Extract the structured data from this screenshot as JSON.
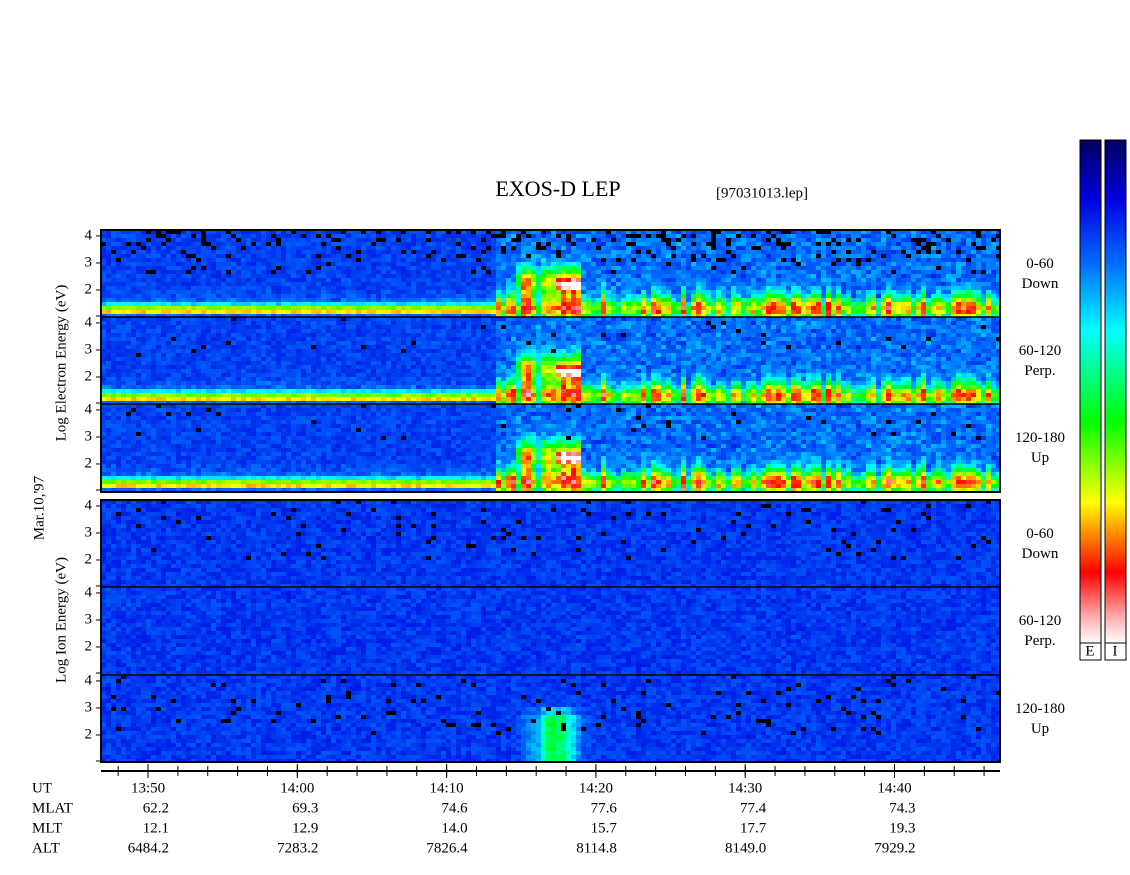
{
  "title": "EXOS-D LEP",
  "file": "[97031013.lep]",
  "date": "Mar.10,'97",
  "electron_axis_label": "Log Electron Energy (eV)",
  "ion_axis_label": "Log Ion Energy (eV)",
  "energy_ylim": [
    1,
    4.22
  ],
  "energy_ticks": [
    4,
    3,
    2
  ],
  "time_xlim": [
    "13:46:51",
    "14:47:04"
  ],
  "panels": [
    {
      "species": "electron",
      "pitch": "0-60",
      "direction": "Down"
    },
    {
      "species": "electron",
      "pitch": "60-120",
      "direction": "Perp."
    },
    {
      "species": "electron",
      "pitch": "120-180",
      "direction": "Up"
    },
    {
      "species": "ion",
      "pitch": "0-60",
      "direction": "Down"
    },
    {
      "species": "ion",
      "pitch": "60-120",
      "direction": "Perp."
    },
    {
      "species": "ion",
      "pitch": "120-180",
      "direction": "Up"
    }
  ],
  "colorbar_labels": [
    "E",
    "I"
  ],
  "table": {
    "rows": [
      {
        "label": "UT",
        "values": [
          "13:50",
          "14:00",
          "14:10",
          "14:20",
          "14:30",
          "14:40"
        ]
      },
      {
        "label": "MLAT",
        "values": [
          "62.2",
          "69.3",
          "74.6",
          "77.6",
          "77.4",
          "74.3"
        ]
      },
      {
        "label": "MLT",
        "values": [
          "12.1",
          "12.9",
          "14.0",
          "15.7",
          "17.7",
          "19.3"
        ]
      },
      {
        "label": "ALT",
        "values": [
          "6484.2",
          "7283.2",
          "7826.4",
          "8114.8",
          "8149.0",
          "7929.2"
        ]
      }
    ]
  }
}
